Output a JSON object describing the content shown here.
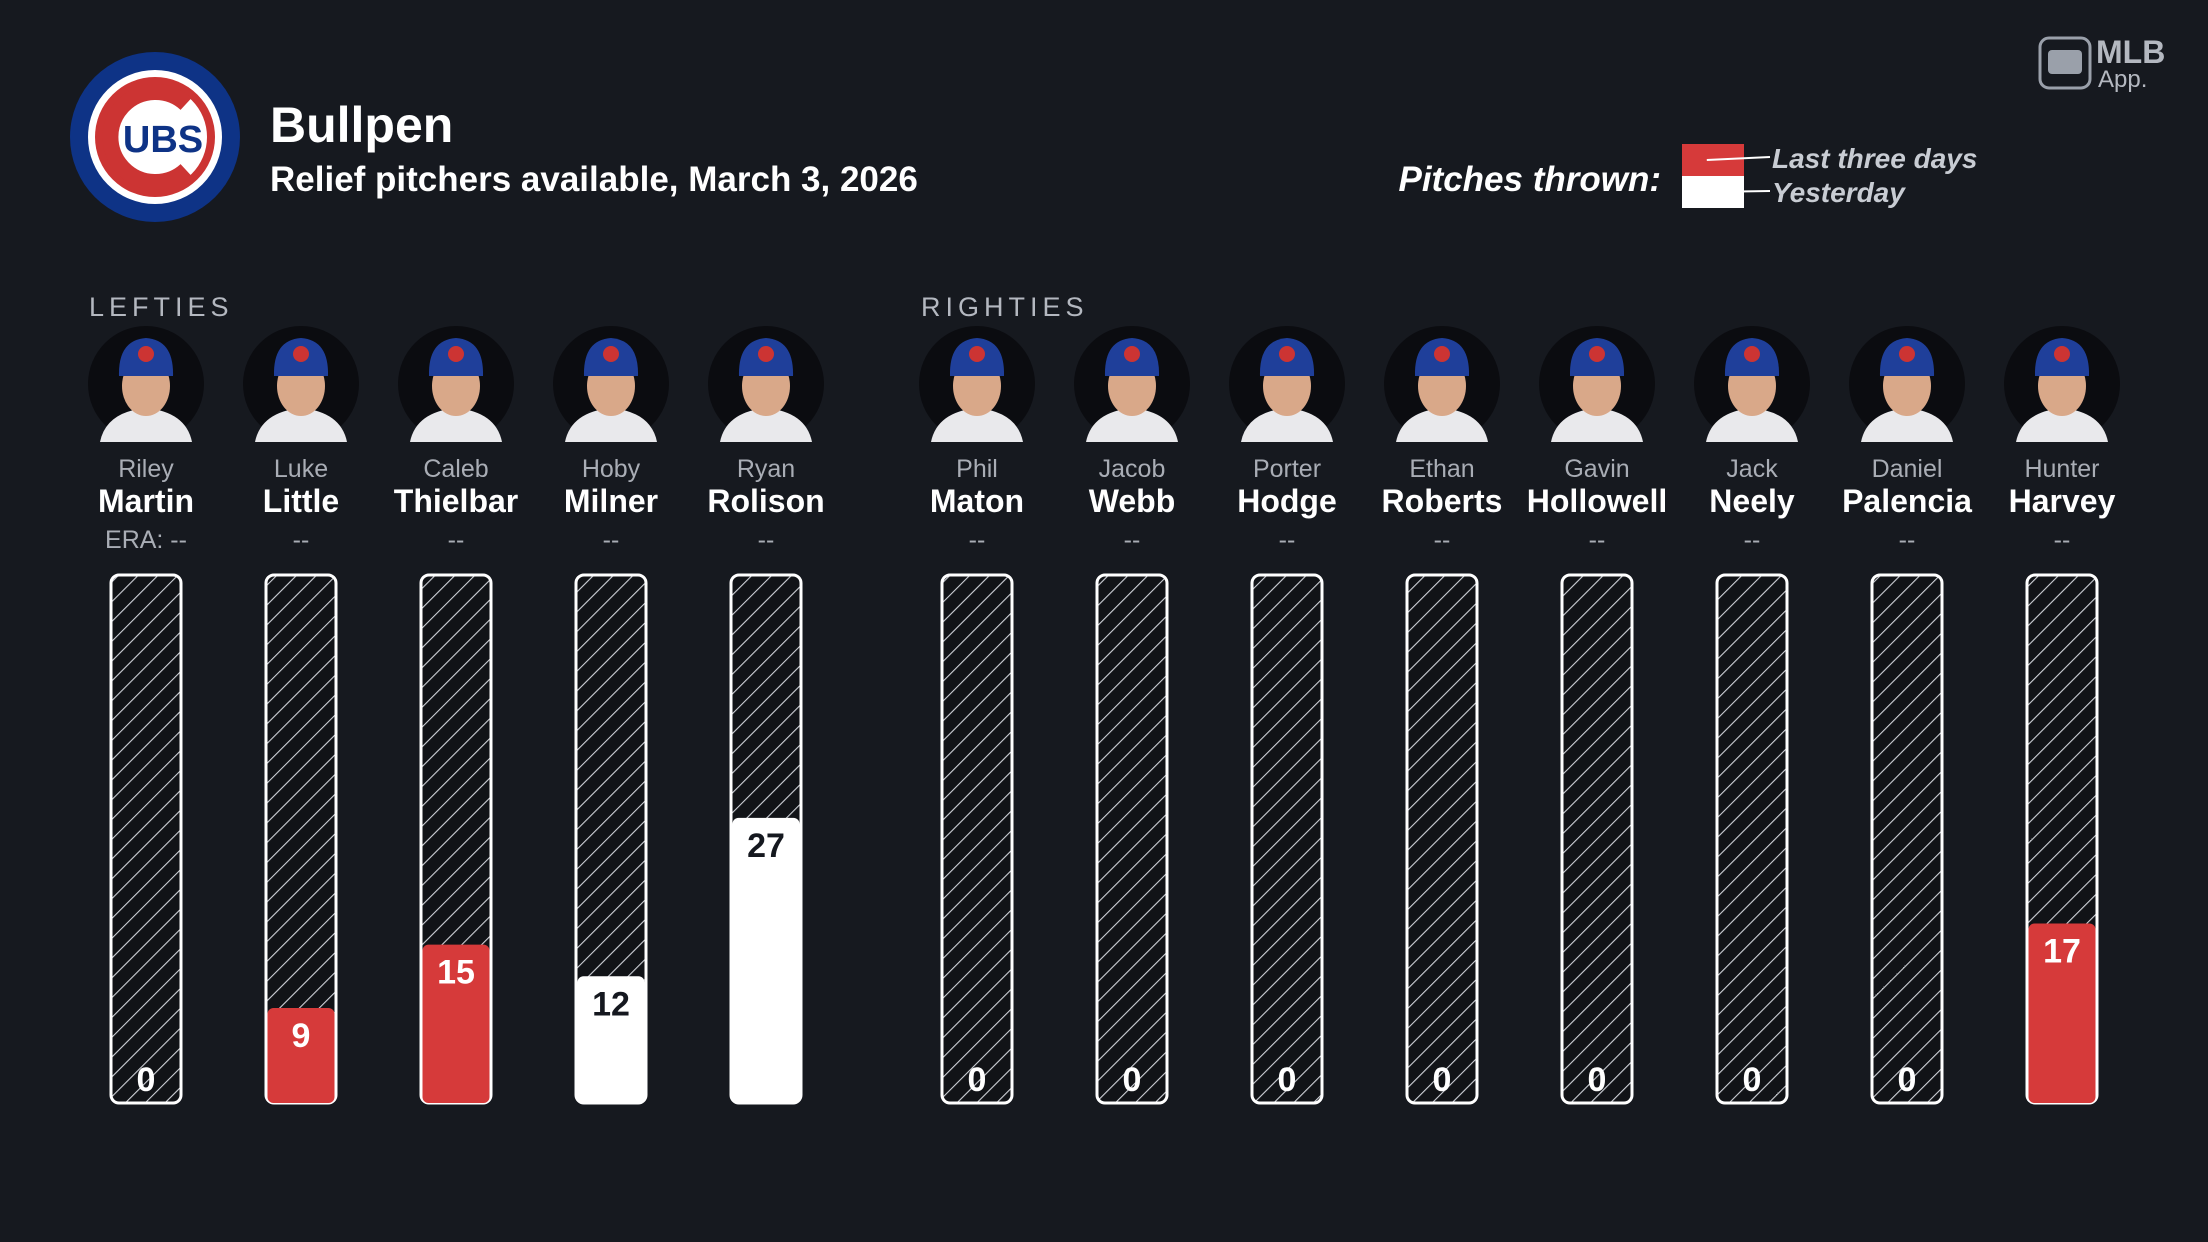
{
  "header": {
    "logo_text": "UBS",
    "title": "Bullpen",
    "subtitle": "Relief pitchers available, March 3, 2026",
    "brand": "MLB",
    "brand_sub": "App."
  },
  "chart_data": {
    "type": "bar",
    "ylim": [
      0,
      50
    ],
    "legend": {
      "title": "Pitches thrown:",
      "items": [
        {
          "name": "Last three days",
          "color": "#d63a3a"
        },
        {
          "name": "Yesterday",
          "color": "#ffffff"
        }
      ]
    },
    "groups": [
      {
        "name": "LEFTIES",
        "pitchers": [
          {
            "first": "Riley",
            "last": "Martin",
            "era": "ERA: --",
            "value": 0
          },
          {
            "first": "Luke",
            "last": "Little",
            "era": "--",
            "value": 9,
            "color": "#d63a3a"
          },
          {
            "first": "Caleb",
            "last": "Thielbar",
            "era": "--",
            "value": 15,
            "color": "#d63a3a"
          },
          {
            "first": "Hoby",
            "last": "Milner",
            "era": "--",
            "value": 12,
            "color": "#ffffff"
          },
          {
            "first": "Ryan",
            "last": "Rolison",
            "era": "--",
            "value": 27,
            "color": "#ffffff"
          }
        ]
      },
      {
        "name": "RIGHTIES",
        "pitchers": [
          {
            "first": "Phil",
            "last": "Maton",
            "era": "--",
            "value": 0
          },
          {
            "first": "Jacob",
            "last": "Webb",
            "era": "--",
            "value": 0
          },
          {
            "first": "Porter",
            "last": "Hodge",
            "era": "--",
            "value": 0
          },
          {
            "first": "Ethan",
            "last": "Roberts",
            "era": "--",
            "value": 0
          },
          {
            "first": "Gavin",
            "last": "Hollowell",
            "era": "--",
            "value": 0
          },
          {
            "first": "Jack",
            "last": "Neely",
            "era": "--",
            "value": 0
          },
          {
            "first": "Daniel",
            "last": "Palencia",
            "era": "--",
            "value": 0
          },
          {
            "first": "Hunter",
            "last": "Harvey",
            "era": "--",
            "value": 17,
            "color": "#d63a3a"
          }
        ]
      }
    ]
  }
}
